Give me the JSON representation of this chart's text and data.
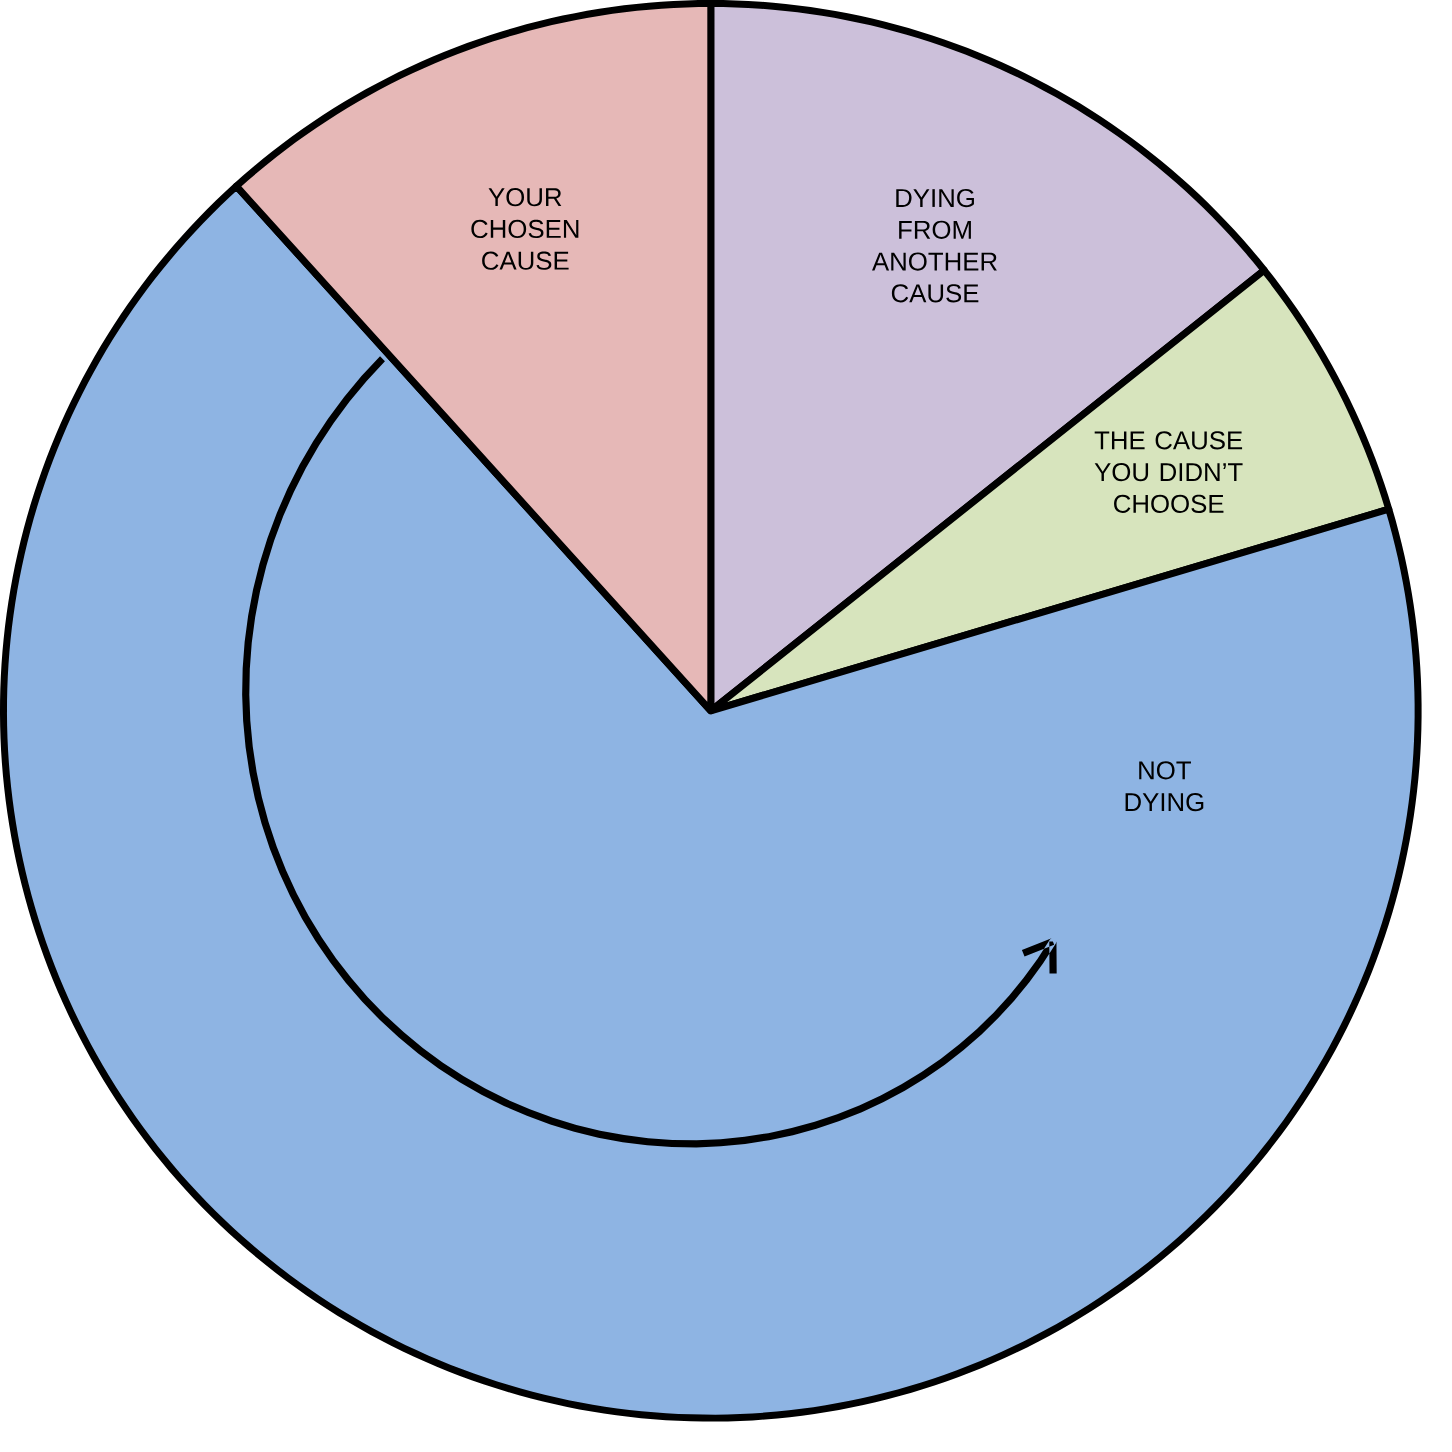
{
  "chart_data": {
    "type": "pie",
    "categories": [
      "DYING FROM ANOTHER CAUSE",
      "THE CAUSE YOU DIDN’T CHOOSE",
      "NOT DYING",
      "YOUR CHOSEN CAUSE"
    ],
    "values": [
      14.3,
      6.1,
      67.9,
      11.7
    ],
    "colors": [
      "#ccc0da",
      "#d7e4bd",
      "#8eb4e3",
      "#e6b8b7"
    ]
  }
}
